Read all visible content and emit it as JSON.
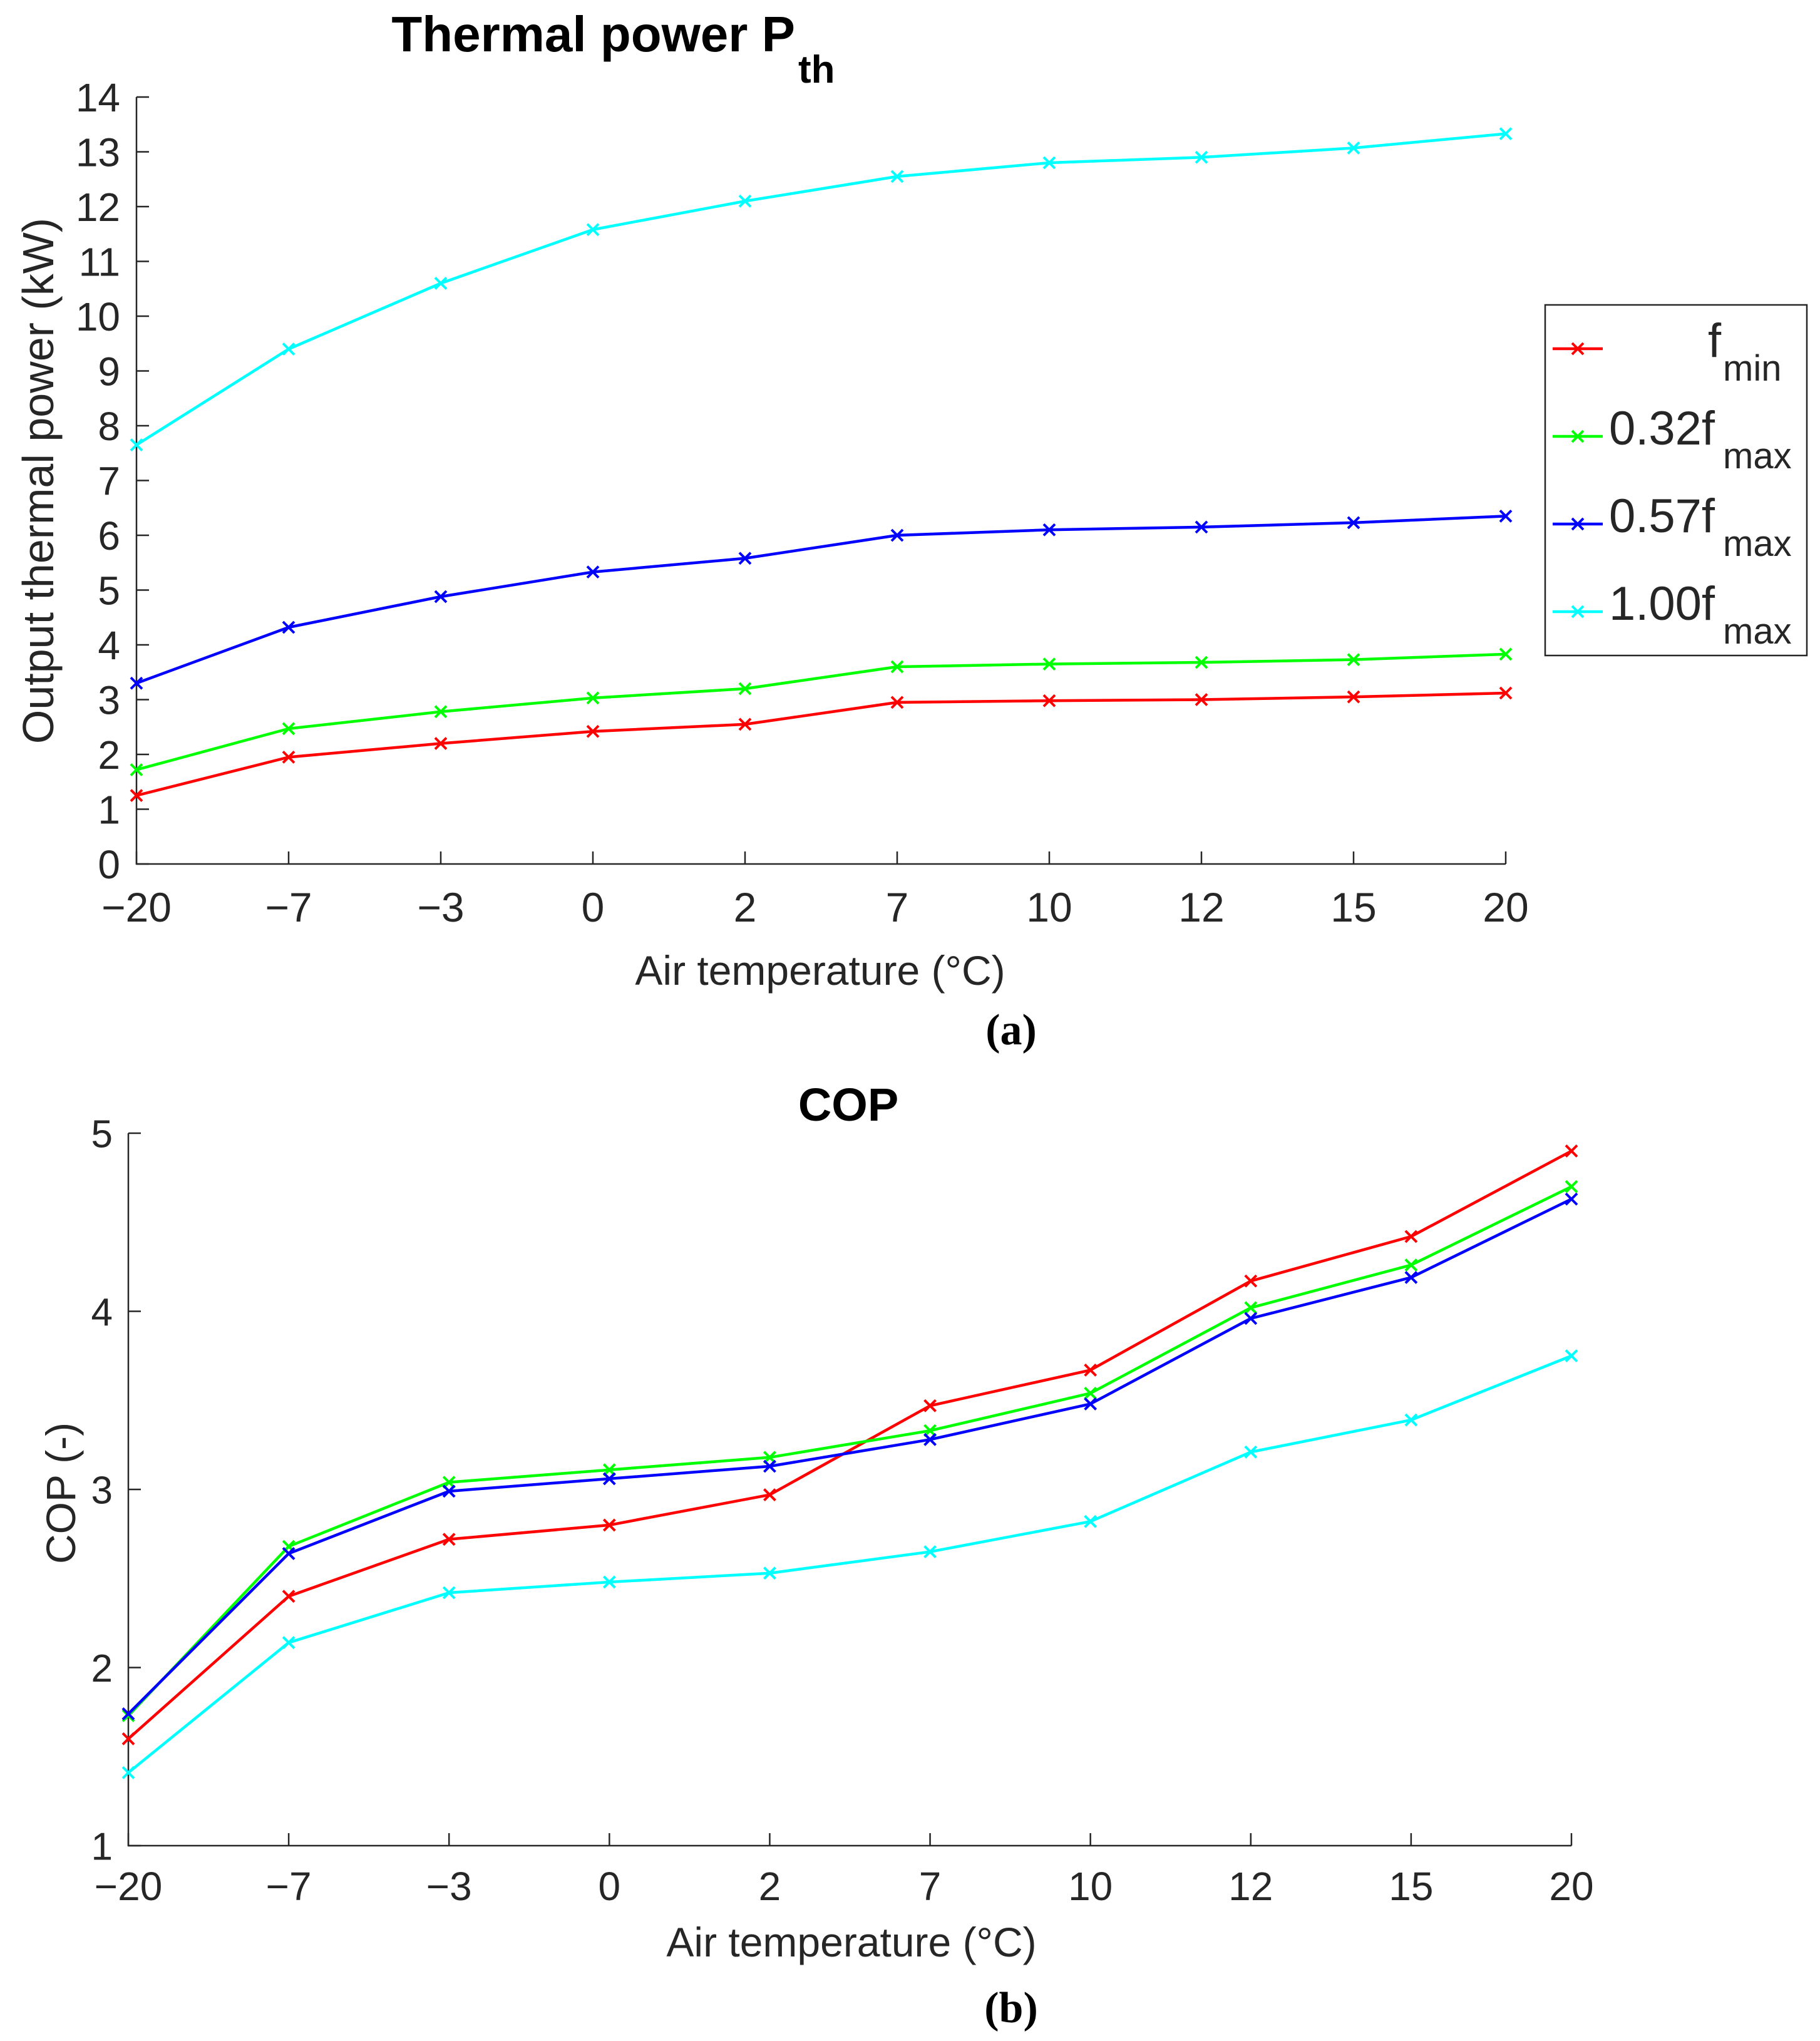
{
  "chart_data": [
    {
      "type": "line",
      "title_main": "Thermal power P",
      "title_sub": "th",
      "xlabel": "Air temperature (°C)",
      "ylabel": "Output thermal power (kW)",
      "caption": "(a)",
      "categories": [
        "−20",
        "−7",
        "−3",
        "0",
        "2",
        "7",
        "10",
        "12",
        "15",
        "20"
      ],
      "ylim": [
        0,
        14
      ],
      "yticks": [
        0,
        1,
        2,
        3,
        4,
        5,
        6,
        7,
        8,
        9,
        10,
        11,
        12,
        13,
        14
      ],
      "legend_position": "right",
      "series": [
        {
          "name": "f",
          "sub": "min",
          "color": "#ff0000",
          "values": [
            1.25,
            1.95,
            2.2,
            2.42,
            2.55,
            2.95,
            2.98,
            3.0,
            3.05,
            3.12
          ]
        },
        {
          "name": "0.32f",
          "sub": "max",
          "color": "#00ff00",
          "values": [
            1.72,
            2.47,
            2.78,
            3.03,
            3.2,
            3.6,
            3.65,
            3.68,
            3.73,
            3.83
          ]
        },
        {
          "name": "0.57f",
          "sub": "max",
          "color": "#0000ff",
          "values": [
            3.3,
            4.32,
            4.88,
            5.33,
            5.58,
            6.0,
            6.1,
            6.15,
            6.23,
            6.35
          ]
        },
        {
          "name": "1.00f",
          "sub": "max",
          "color": "#00ffff",
          "values": [
            7.65,
            9.4,
            10.6,
            11.58,
            12.1,
            12.55,
            12.8,
            12.9,
            13.07,
            13.33
          ]
        }
      ]
    },
    {
      "type": "line",
      "title_main": "COP",
      "title_sub": "",
      "xlabel": "Air temperature (°C)",
      "ylabel": "COP (-)",
      "caption": "(b)",
      "categories": [
        "−20",
        "−7",
        "−3",
        "0",
        "2",
        "7",
        "10",
        "12",
        "15",
        "20"
      ],
      "ylim": [
        1,
        5
      ],
      "yticks": [
        1,
        2,
        3,
        4,
        5
      ],
      "series": [
        {
          "name": "f min",
          "color": "#ff0000",
          "values": [
            1.6,
            2.4,
            2.72,
            2.8,
            2.97,
            3.47,
            3.67,
            4.17,
            4.42,
            4.9
          ]
        },
        {
          "name": "0.32f max",
          "color": "#00ff00",
          "values": [
            1.73,
            2.68,
            3.04,
            3.11,
            3.18,
            3.33,
            3.54,
            4.02,
            4.26,
            4.7
          ]
        },
        {
          "name": "0.57f max",
          "color": "#0000ff",
          "values": [
            1.74,
            2.64,
            2.99,
            3.06,
            3.13,
            3.28,
            3.48,
            3.96,
            4.19,
            4.63
          ]
        },
        {
          "name": "1.00f max",
          "color": "#00ffff",
          "values": [
            1.41,
            2.14,
            2.42,
            2.48,
            2.53,
            2.65,
            2.82,
            3.21,
            3.39,
            3.75
          ]
        }
      ]
    }
  ]
}
